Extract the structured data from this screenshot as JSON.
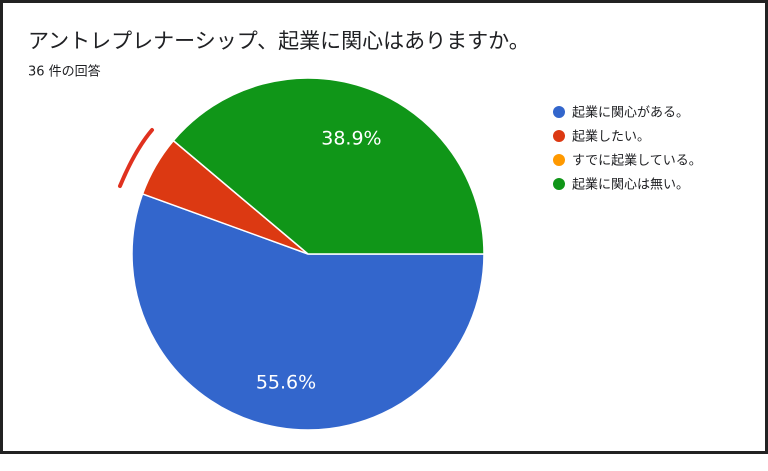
{
  "chart_data": {
    "type": "pie",
    "title": "アントレプレナーシップ、起業に関心はありますか。",
    "subtitle": "36 件の回答",
    "categories": [
      "起業に関心がある。",
      "起業したい。",
      "すでに起業している。",
      "起業に関心は無い。"
    ],
    "values": [
      55.6,
      5.6,
      0,
      38.9
    ],
    "value_labels": [
      "55.6%",
      null,
      null,
      "38.9%"
    ],
    "colors": [
      "#3366cc",
      "#dc3912",
      "#ff9900",
      "#109618"
    ],
    "legend": "right"
  }
}
